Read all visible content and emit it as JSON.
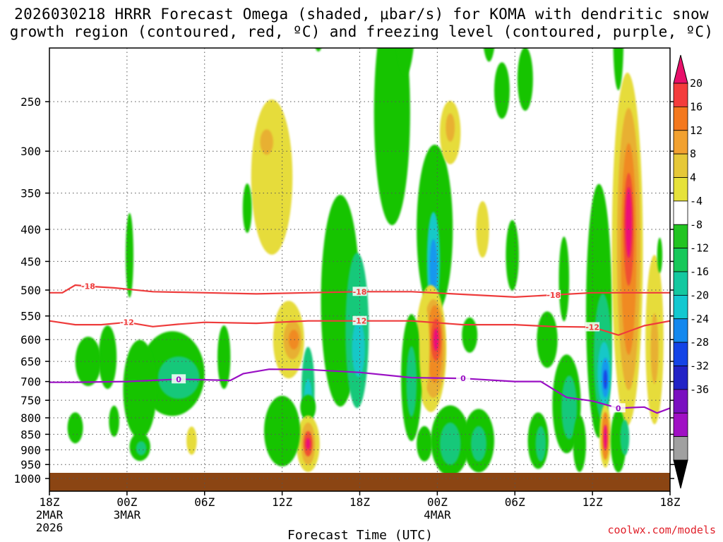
{
  "title_line1": "2026030218 HRRR Forecast Omega (shaded, μbar/s) for KOMA with dendritic snow",
  "title_line2": "growth region (contoured, red, ºC) and freezing level (contoured, purple, ºC)",
  "credit": "coolwx.com/models",
  "chart_data": {
    "type": "heatmap",
    "title": "2026030218 HRRR Forecast Omega (shaded, μbar/s) for KOMA with dendritic snow growth region (contoured, red, ºC) and freezing level (contoured, purple, ºC)",
    "xlabel": "Forecast Time (UTC)",
    "ylabel": "",
    "x_hours_range": [
      0,
      48
    ],
    "y_pressure_range_hPa": [
      1000,
      200
    ],
    "y_scale": "log",
    "x_ticks": [
      {
        "h": 0,
        "label": "18Z",
        "sub1": "2MAR",
        "sub2": "2026"
      },
      {
        "h": 6,
        "label": "00Z",
        "sub1": "3MAR",
        "sub2": ""
      },
      {
        "h": 12,
        "label": "06Z",
        "sub1": "",
        "sub2": ""
      },
      {
        "h": 18,
        "label": "12Z",
        "sub1": "",
        "sub2": ""
      },
      {
        "h": 24,
        "label": "18Z",
        "sub1": "",
        "sub2": ""
      },
      {
        "h": 30,
        "label": "00Z",
        "sub1": "4MAR",
        "sub2": ""
      },
      {
        "h": 36,
        "label": "06Z",
        "sub1": "",
        "sub2": ""
      },
      {
        "h": 42,
        "label": "12Z",
        "sub1": "",
        "sub2": ""
      },
      {
        "h": 48,
        "label": "18Z",
        "sub1": "",
        "sub2": ""
      }
    ],
    "y_ticks": [
      250,
      300,
      350,
      400,
      450,
      500,
      550,
      600,
      650,
      700,
      750,
      800,
      850,
      900,
      950,
      1000
    ],
    "grid": true,
    "colorbar": {
      "labels": [
        "20",
        "16",
        "12",
        "8",
        "4",
        "-4",
        "-8",
        "-12",
        "-16",
        "-20",
        "-24",
        "-28",
        "-32",
        "-36"
      ],
      "colors": [
        "#e8106a",
        "#f43c3c",
        "#f4781e",
        "#f2a130",
        "#e6c838",
        "#e6e23a",
        "#ffffff",
        "#22c422",
        "#17c85a",
        "#14c8a0",
        "#14c8d0",
        "#1488ee",
        "#1444e6",
        "#2222c6",
        "#7a10c0",
        "#a010c4",
        "#a0a0a0",
        "#000000"
      ]
    },
    "dgz_contours": [
      {
        "level": -18,
        "label": "-18",
        "color": "#ee3c3c",
        "points": [
          [
            0,
            505
          ],
          [
            1,
            505
          ],
          [
            2,
            491
          ],
          [
            3,
            493
          ],
          [
            5,
            496
          ],
          [
            8,
            503
          ],
          [
            12,
            505
          ],
          [
            16,
            507
          ],
          [
            20,
            505
          ],
          [
            24,
            503
          ],
          [
            28,
            503
          ],
          [
            32,
            508
          ],
          [
            36,
            513
          ],
          [
            39,
            509
          ],
          [
            42,
            505
          ],
          [
            45,
            505
          ],
          [
            48,
            505
          ]
        ]
      },
      {
        "level": -12,
        "label": "-12",
        "color": "#ee3c3c",
        "points": [
          [
            0,
            560
          ],
          [
            2,
            568
          ],
          [
            4,
            568
          ],
          [
            6,
            563
          ],
          [
            8,
            572
          ],
          [
            10,
            567
          ],
          [
            12,
            563
          ],
          [
            16,
            565
          ],
          [
            20,
            560
          ],
          [
            24,
            560
          ],
          [
            28,
            560
          ],
          [
            32,
            568
          ],
          [
            36,
            568
          ],
          [
            39,
            572
          ],
          [
            42,
            573
          ],
          [
            44,
            590
          ],
          [
            46,
            570
          ],
          [
            48,
            560
          ]
        ]
      },
      {
        "level": 0,
        "label": "0",
        "color": "#9a10c4",
        "points": [
          [
            0,
            702
          ],
          [
            2,
            702
          ],
          [
            6,
            700
          ],
          [
            10,
            694
          ],
          [
            14,
            697
          ],
          [
            15,
            680
          ],
          [
            17,
            669
          ],
          [
            20,
            670
          ],
          [
            24,
            677
          ],
          [
            28,
            690
          ],
          [
            32,
            692
          ],
          [
            36,
            700
          ],
          [
            38,
            700
          ],
          [
            40,
            742
          ],
          [
            42,
            752
          ],
          [
            44,
            772
          ],
          [
            46,
            769
          ],
          [
            47,
            786
          ],
          [
            48,
            772
          ]
        ]
      }
    ]
  }
}
